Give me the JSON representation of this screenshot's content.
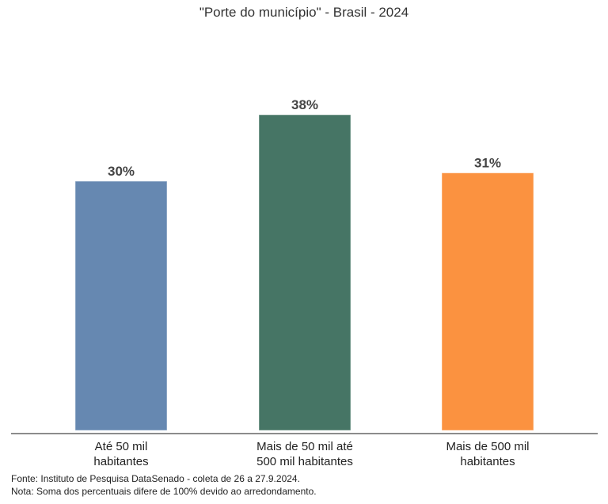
{
  "chart_data": {
    "type": "bar",
    "title": "\"Porte do município\" - Brasil - 2024",
    "categories": [
      [
        "Até 50 mil",
        "habitantes"
      ],
      [
        "Mais de 50 mil até",
        "500 mil habitantes"
      ],
      [
        "Mais de 500 mil",
        "habitantes"
      ]
    ],
    "values": [
      30,
      38,
      31
    ],
    "value_labels": [
      "30%",
      "38%",
      "31%"
    ],
    "colors": [
      "#6688b1",
      "#467565",
      "#fb9240"
    ],
    "ylim": [
      0,
      40
    ],
    "grid": false,
    "legend": "none"
  },
  "footnotes": {
    "source": "Fonte: Instituto de Pesquisa DataSenado - coleta de 26 a 27.9.2024.",
    "note": "Nota: Soma dos percentuais difere de 100% devido ao arredondamento."
  }
}
